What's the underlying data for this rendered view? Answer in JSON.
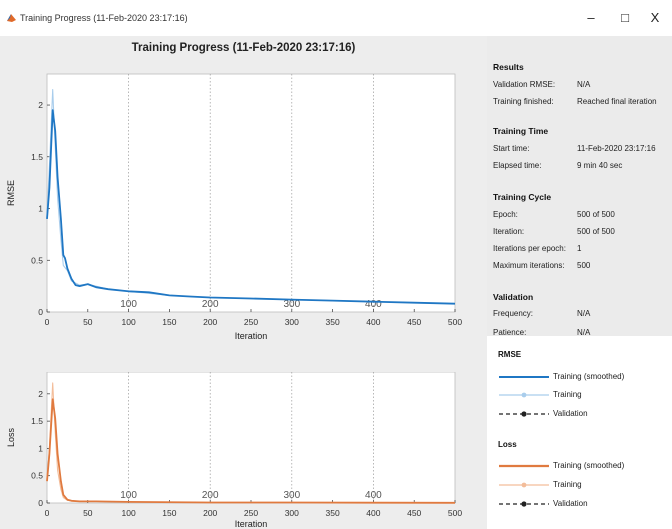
{
  "window": {
    "title": "Training Progress (11-Feb-2020 23:17:16)",
    "minimize": "–",
    "maximize": "□",
    "close": "X"
  },
  "main_title": "Training Progress (11-Feb-2020 23:17:16)",
  "info": {
    "results": {
      "heading": "Results",
      "rows": [
        {
          "label": "Validation RMSE:",
          "value": "N/A"
        },
        {
          "label": "Training finished:",
          "value": "Reached final iteration"
        }
      ]
    },
    "training_time": {
      "heading": "Training Time",
      "rows": [
        {
          "label": "Start time:",
          "value": "11-Feb-2020 23:17:16"
        },
        {
          "label": "Elapsed time:",
          "value": "9 min 40 sec"
        }
      ]
    },
    "training_cycle": {
      "heading": "Training Cycle",
      "rows": [
        {
          "label": "Epoch:",
          "value": "500 of 500"
        },
        {
          "label": "Iteration:",
          "value": "500 of 500"
        },
        {
          "label": "Iterations per epoch:",
          "value": "1"
        },
        {
          "label": "Maximum iterations:",
          "value": "500"
        }
      ]
    },
    "validation": {
      "heading": "Validation",
      "rows": [
        {
          "label": "Frequency:",
          "value": "N/A"
        },
        {
          "label": "Patience:",
          "value": "N/A"
        }
      ]
    }
  },
  "legend": {
    "rmse": {
      "heading": "RMSE",
      "items": [
        "Training (smoothed)",
        "Training",
        "Validation"
      ]
    },
    "loss": {
      "heading": "Loss",
      "items": [
        "Training (smoothed)",
        "Training",
        "Validation"
      ]
    }
  },
  "colors": {
    "rmse_smoothed": "#1f77c4",
    "rmse_training": "#a9cdec",
    "loss_smoothed": "#e07a3f",
    "loss_training": "#f3bd9a",
    "validation": "#222222",
    "epoch_marker": "#9a9a9a"
  },
  "chart_data": [
    {
      "type": "line",
      "title": "",
      "xlabel": "Iteration",
      "ylabel": "RMSE",
      "xlim": [
        0,
        500
      ],
      "ylim": [
        0,
        2.3
      ],
      "xticks": [
        0,
        50,
        100,
        150,
        200,
        250,
        300,
        350,
        400,
        450,
        500
      ],
      "yticks": [
        0,
        0.5,
        1,
        1.5,
        2
      ],
      "epoch_markers": [
        100,
        200,
        300,
        400
      ],
      "grid": false,
      "series": [
        {
          "name": "Training (smoothed)",
          "x": [
            0,
            3,
            7,
            10,
            13,
            17,
            20,
            22,
            25,
            30,
            35,
            40,
            50,
            60,
            75,
            100,
            125,
            150,
            175,
            200,
            250,
            300,
            350,
            400,
            450,
            500
          ],
          "y": [
            0.9,
            1.2,
            1.95,
            1.75,
            1.3,
            0.9,
            0.55,
            0.52,
            0.42,
            0.32,
            0.26,
            0.25,
            0.27,
            0.24,
            0.22,
            0.2,
            0.19,
            0.16,
            0.15,
            0.14,
            0.13,
            0.12,
            0.11,
            0.1,
            0.09,
            0.08
          ]
        },
        {
          "name": "Training",
          "x": [
            0,
            3,
            7,
            10,
            13,
            17,
            20,
            25,
            30,
            40,
            50,
            75,
            100,
            150,
            200,
            300,
            400,
            500
          ],
          "y": [
            0.95,
            1.4,
            2.15,
            1.6,
            1.1,
            0.7,
            0.45,
            0.4,
            0.3,
            0.26,
            0.27,
            0.22,
            0.2,
            0.16,
            0.14,
            0.12,
            0.1,
            0.08
          ]
        }
      ]
    },
    {
      "type": "line",
      "title": "",
      "xlabel": "Iteration",
      "ylabel": "Loss",
      "xlim": [
        0,
        500
      ],
      "ylim": [
        0,
        2.4
      ],
      "xticks": [
        0,
        50,
        100,
        150,
        200,
        250,
        300,
        350,
        400,
        450,
        500
      ],
      "yticks": [
        0,
        0.5,
        1,
        1.5,
        2
      ],
      "epoch_markers": [
        100,
        200,
        300,
        400
      ],
      "grid": false,
      "series": [
        {
          "name": "Training (smoothed)",
          "x": [
            0,
            3,
            7,
            10,
            13,
            17,
            20,
            25,
            30,
            40,
            60,
            100,
            200,
            300,
            400,
            500
          ],
          "y": [
            0.4,
            0.9,
            1.9,
            1.55,
            0.9,
            0.4,
            0.15,
            0.06,
            0.04,
            0.03,
            0.03,
            0.02,
            0.01,
            0.01,
            0.005,
            0.004
          ]
        },
        {
          "name": "Training",
          "x": [
            0,
            3,
            7,
            10,
            13,
            17,
            20,
            25,
            30,
            40,
            60,
            100,
            200,
            300,
            400,
            500
          ],
          "y": [
            0.45,
            1.0,
            2.2,
            1.3,
            0.6,
            0.25,
            0.1,
            0.05,
            0.04,
            0.03,
            0.03,
            0.02,
            0.01,
            0.01,
            0.005,
            0.004
          ]
        }
      ]
    }
  ]
}
